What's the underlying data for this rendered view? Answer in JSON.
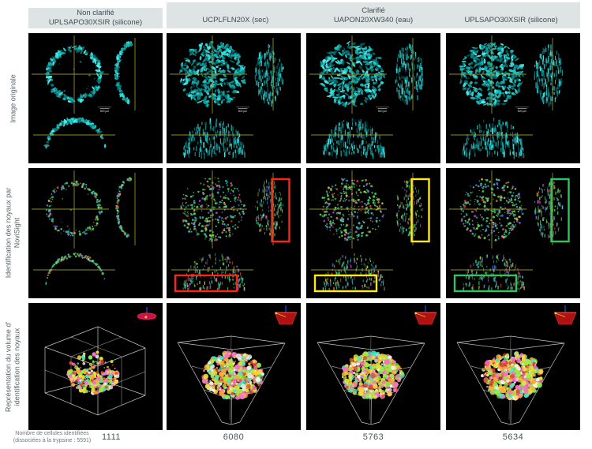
{
  "header": {
    "clarifie_title": "Clarifié"
  },
  "figure": {
    "rows": [
      {
        "id": "original",
        "label_lines": [
          "Image originale"
        ]
      },
      {
        "id": "novisight",
        "label_lines": [
          "Identification des noyaux par",
          "NoviSight"
        ]
      },
      {
        "id": "volume",
        "label_lines": [
          "Représentation du volume d'",
          "identification des noyaux"
        ]
      }
    ],
    "columns": [
      {
        "id": "non-clarifie",
        "header_title": "Non clarifié",
        "header_subtitle": "UPLSAPO30XSIR (silicone)",
        "clarified": false,
        "highlight_color": null,
        "cell_count": "1111"
      },
      {
        "id": "sec",
        "label": "UCPLFLN20X (sec)",
        "clarified": true,
        "highlight_color": "#ff2419",
        "cell_count": "6080"
      },
      {
        "id": "eau",
        "label": "UAPON20XW340 (eau)",
        "clarified": true,
        "highlight_color": "#ffe81e",
        "cell_count": "5763"
      },
      {
        "id": "silicone",
        "label": "UPLSAPO30XSIR (silicone)",
        "clarified": true,
        "highlight_color": "#2fc45f",
        "cell_count": "5634"
      }
    ],
    "scale_label": "500 µm"
  },
  "footer": {
    "caption_line1": "Nombre de cellules identifiées",
    "caption_line2": "(dissociées à la trypsine : 5591)"
  },
  "colors": {
    "panel_background": "#000000",
    "header_background": "#dee3e4",
    "crosshair": "#96962e",
    "signal_cyan": "#12cfcf",
    "highlight_red": "#ff2419",
    "highlight_yellow": "#ffe81e",
    "highlight_green": "#2fc45f"
  },
  "icons": {
    "orientation_gizmo": "camera-orientation-gizmo-icon"
  }
}
